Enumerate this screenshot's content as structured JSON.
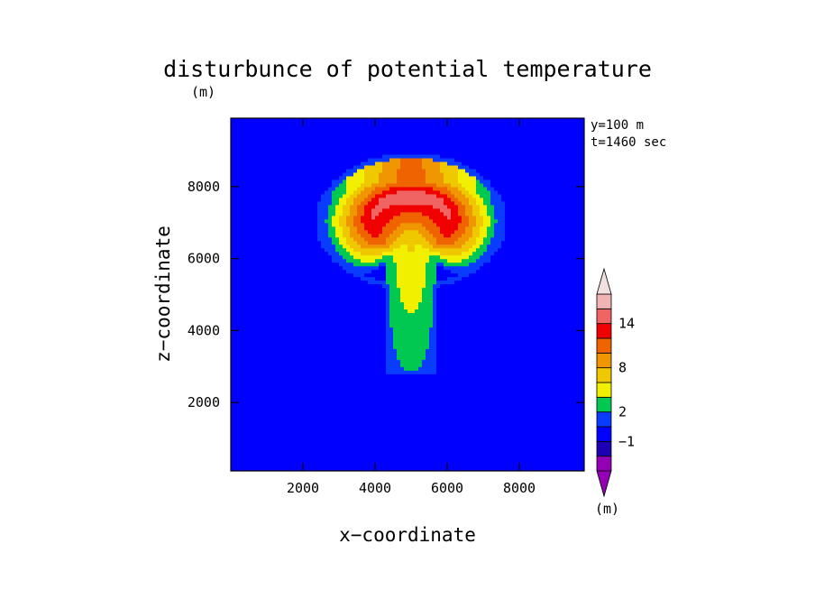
{
  "chart_data": {
    "type": "heatmap",
    "title": "disturbunce of potential temperature",
    "title_unit": "(m)",
    "xlabel": "x−coordinate",
    "ylabel": "z−coordinate",
    "xlim": [
      0,
      9800
    ],
    "ylim": [
      100,
      9900
    ],
    "xticks": [
      2000,
      4000,
      6000,
      8000
    ],
    "yticks": [
      2000,
      4000,
      6000,
      8000
    ],
    "xtick_labels": [
      "2000",
      "4000",
      "6000",
      "8000"
    ],
    "ytick_labels": [
      "2000",
      "4000",
      "6000",
      "8000"
    ],
    "annotations": [
      "y=100 m",
      "t=1460 sec"
    ],
    "field": {
      "background_value": -0.5,
      "plume": {
        "cap_center_x": 5000,
        "cap_center_z": 7050,
        "cap_half_width": 2450,
        "cap_half_height": 1750,
        "cap_max": 15,
        "stem_center_x": 5000,
        "stem_bottom_z": 2800,
        "stem_half_width": 650,
        "stem_min": 2,
        "stem_max": 7
      }
    },
    "colorbar": {
      "levels": [
        -3,
        -2,
        -1,
        0,
        2,
        4,
        6,
        8,
        10,
        12,
        14,
        16
      ],
      "colors": [
        "#9400b4",
        "#1e00b4",
        "#0000ff",
        "#0a3cff",
        "#00c850",
        "#f0f000",
        "#f0c800",
        "#f09600",
        "#f06400",
        "#f00000",
        "#f06464",
        "#f0b4b4"
      ],
      "tick_labels": [
        "14",
        "8",
        "2",
        "−1"
      ],
      "unit": "(m)",
      "under_color": "#9400b4",
      "over_color": "#f0e0e0"
    }
  }
}
